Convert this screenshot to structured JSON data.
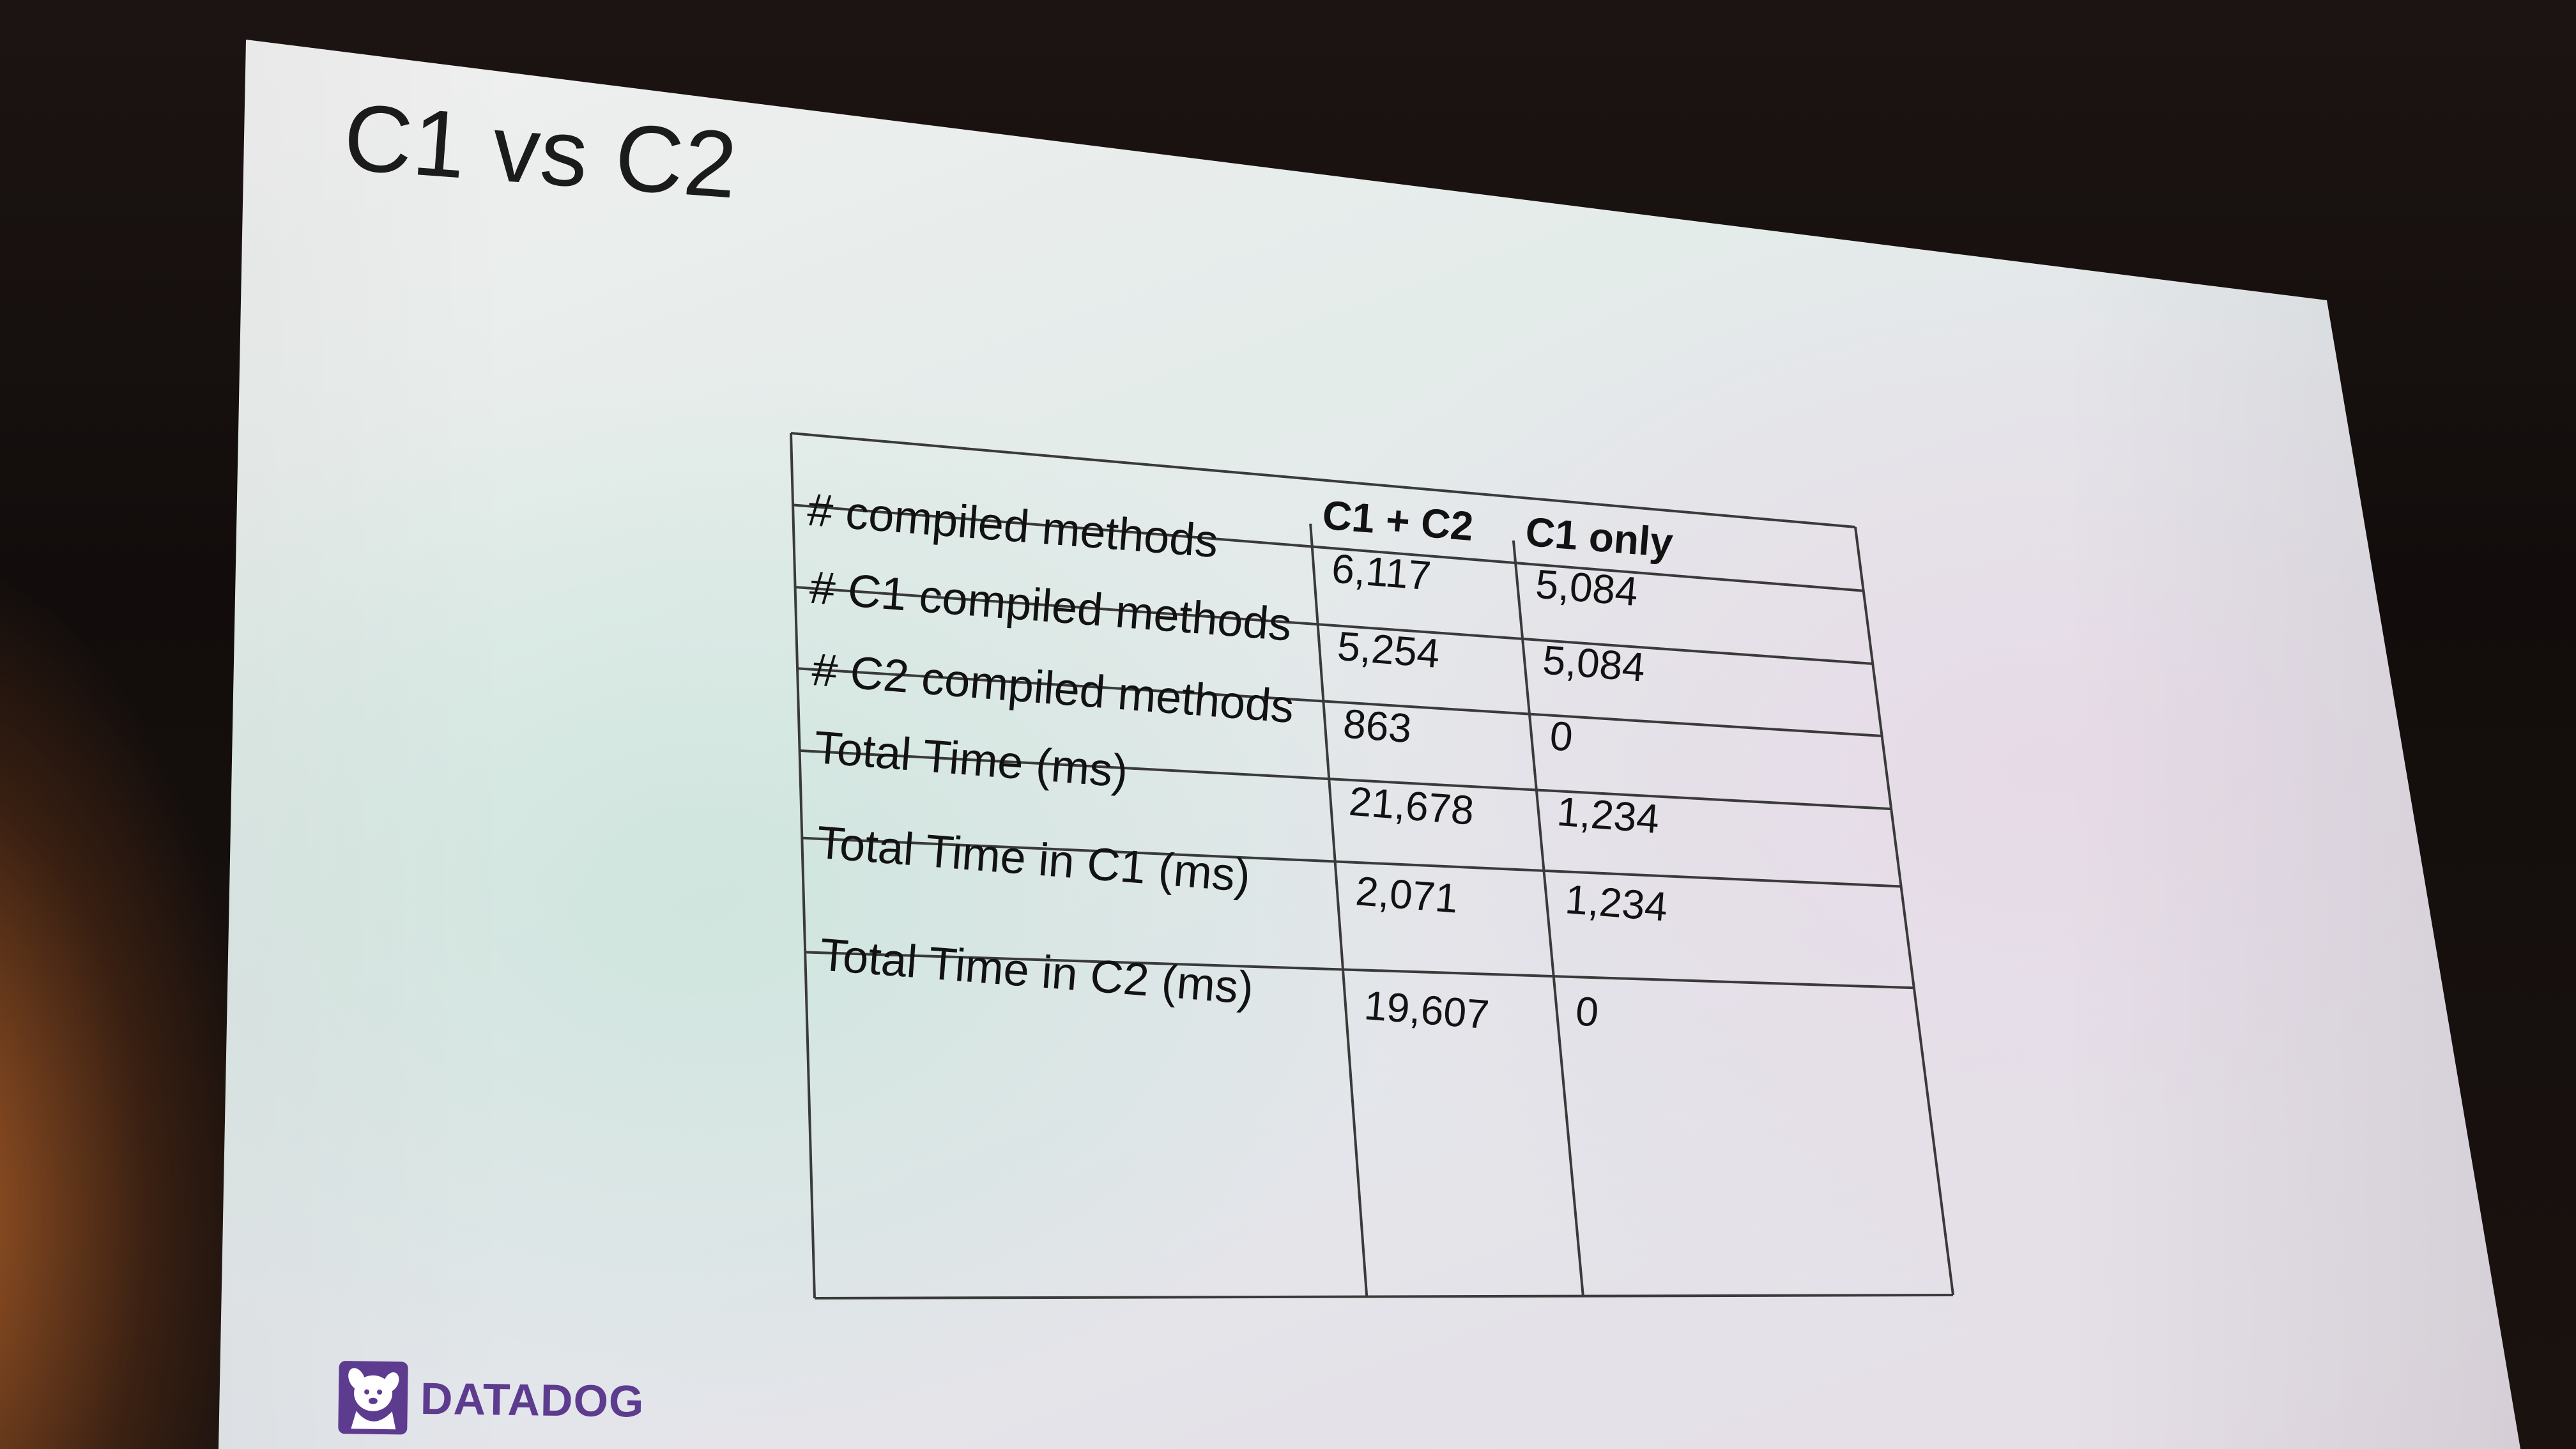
{
  "slide": {
    "title": "C1 vs C2"
  },
  "table": {
    "columns": [
      "",
      "C1 + C2",
      "C1 only"
    ],
    "rows": [
      {
        "label": "# compiled methods",
        "c1_c2": "6,117",
        "c1_only": "5,084"
      },
      {
        "label": "# C1 compiled methods",
        "c1_c2": "5,254",
        "c1_only": "5,084"
      },
      {
        "label": "# C2 compiled methods",
        "c1_c2": "863",
        "c1_only": "0"
      },
      {
        "label": "Total Time (ms)",
        "c1_c2": "21,678",
        "c1_only": "1,234"
      },
      {
        "label": "Total Time in C1 (ms)",
        "c1_c2": "2,071",
        "c1_only": "1,234"
      },
      {
        "label": "Total Time in C2 (ms)",
        "c1_c2": "19,607",
        "c1_only": "0"
      }
    ]
  },
  "logo": {
    "text": "DATADOG",
    "icon": "datadog-dog-icon",
    "color": "#5d3b8f"
  }
}
